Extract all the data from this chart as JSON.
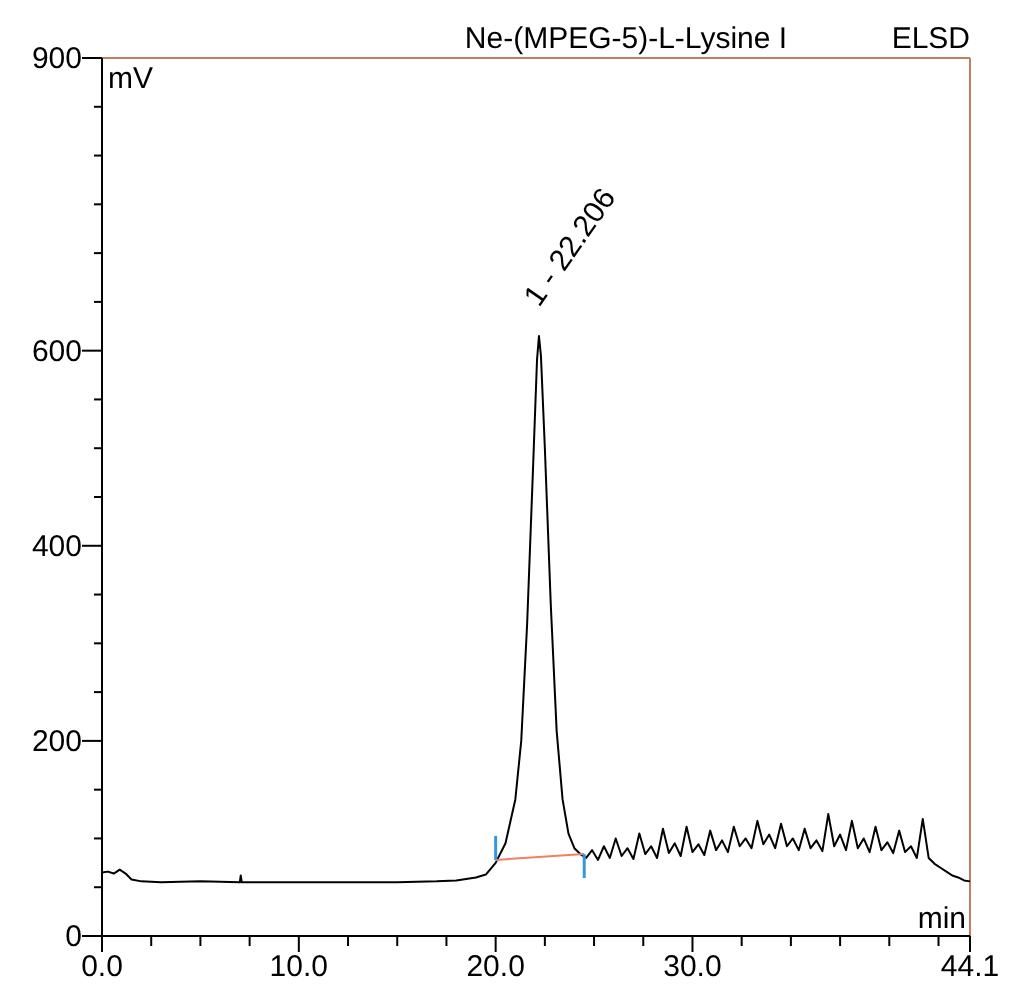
{
  "chart_data": {
    "type": "line",
    "title": "Ne-(MPEG-5)-L-Lysine I",
    "subtitle": "ELSD",
    "xlabel": "min",
    "ylabel": "mV",
    "xlim": [
      0,
      44.1
    ],
    "ylim": [
      0,
      900
    ],
    "xticks": [
      {
        "value": 0,
        "label": "0.0"
      },
      {
        "value": 2.5,
        "label": null
      },
      {
        "value": 5,
        "label": null
      },
      {
        "value": 7.5,
        "label": null
      },
      {
        "value": 10,
        "label": "10.0"
      },
      {
        "value": 12.5,
        "label": null
      },
      {
        "value": 15,
        "label": null
      },
      {
        "value": 17.5,
        "label": null
      },
      {
        "value": 20,
        "label": "20.0"
      },
      {
        "value": 22.5,
        "label": null
      },
      {
        "value": 25,
        "label": null
      },
      {
        "value": 27.5,
        "label": null
      },
      {
        "value": 30,
        "label": "30.0"
      },
      {
        "value": 32.5,
        "label": null
      },
      {
        "value": 35,
        "label": null
      },
      {
        "value": 37.5,
        "label": null
      },
      {
        "value": 40,
        "label": null
      },
      {
        "value": 42.5,
        "label": null
      },
      {
        "value": 44.1,
        "label": "44.1"
      }
    ],
    "yticks": [
      0,
      {
        "value": 50,
        "label": null
      },
      {
        "value": 100,
        "label": null
      },
      {
        "value": 150,
        "label": null
      },
      200,
      {
        "value": 250,
        "label": null
      },
      {
        "value": 300,
        "label": null
      },
      {
        "value": 350,
        "label": null
      },
      400,
      {
        "value": 450,
        "label": null
      },
      {
        "value": 500,
        "label": null
      },
      {
        "value": 550,
        "label": null
      },
      600,
      {
        "value": 650,
        "label": null
      },
      {
        "value": 700,
        "label": null
      },
      {
        "value": 750,
        "label": null
      },
      {
        "value": 800,
        "label": null
      },
      {
        "value": 850,
        "label": null
      },
      900
    ],
    "grid": false,
    "marker": "none",
    "line_style": "solid",
    "annotations": [
      {
        "text": "1 - 22.206",
        "x": 22.206,
        "y": 615
      }
    ],
    "series": [
      {
        "color": "#000000",
        "x": [
          0,
          0.3,
          0.6,
          0.9,
          1.2,
          1.5,
          2,
          3,
          5,
          7,
          7.05,
          7.1,
          9,
          12,
          15,
          17,
          18,
          19,
          19.5,
          20,
          20.5,
          21,
          21.3,
          21.6,
          21.9,
          22.1,
          22.2,
          22.3,
          22.5,
          22.8,
          23.1,
          23.4,
          23.7,
          24,
          24.3,
          24.6,
          24.9,
          25.2,
          25.5,
          25.8,
          26.1,
          26.4,
          26.7,
          27,
          27.3,
          27.6,
          27.9,
          28.2,
          28.5,
          28.8,
          29.1,
          29.4,
          29.7,
          30,
          30.3,
          30.6,
          30.9,
          31.2,
          31.5,
          31.8,
          32.1,
          32.4,
          32.7,
          33,
          33.3,
          33.6,
          33.9,
          34.2,
          34.5,
          34.8,
          35.1,
          35.4,
          35.7,
          36,
          36.3,
          36.6,
          36.9,
          37.2,
          37.5,
          37.8,
          38.1,
          38.4,
          38.7,
          39,
          39.3,
          39.6,
          39.9,
          40.2,
          40.5,
          40.8,
          41.1,
          41.4,
          41.7,
          42,
          42.3,
          42.6,
          42.9,
          43.2,
          43.5,
          43.8,
          44.1
        ],
        "values": [
          65,
          66,
          64,
          68,
          64,
          58,
          56,
          55,
          56,
          55,
          62,
          55,
          55,
          55,
          55,
          56,
          57,
          60,
          63,
          75,
          95,
          140,
          200,
          320,
          480,
          590,
          615,
          595,
          500,
          340,
          210,
          140,
          105,
          90,
          84,
          80,
          88,
          78,
          92,
          80,
          100,
          82,
          90,
          79,
          105,
          84,
          92,
          80,
          110,
          85,
          95,
          82,
          112,
          86,
          94,
          83,
          108,
          88,
          98,
          86,
          112,
          92,
          100,
          90,
          118,
          94,
          104,
          90,
          115,
          92,
          100,
          88,
          110,
          90,
          98,
          87,
          125,
          92,
          104,
          88,
          118,
          90,
          100,
          86,
          112,
          88,
          96,
          85,
          108,
          86,
          92,
          80,
          120,
          80,
          74,
          70,
          66,
          62,
          60,
          57,
          56
        ]
      },
      {
        "color": "#f08060",
        "x": [
          20,
          24.5
        ],
        "values": [
          78,
          84
        ]
      }
    ]
  }
}
